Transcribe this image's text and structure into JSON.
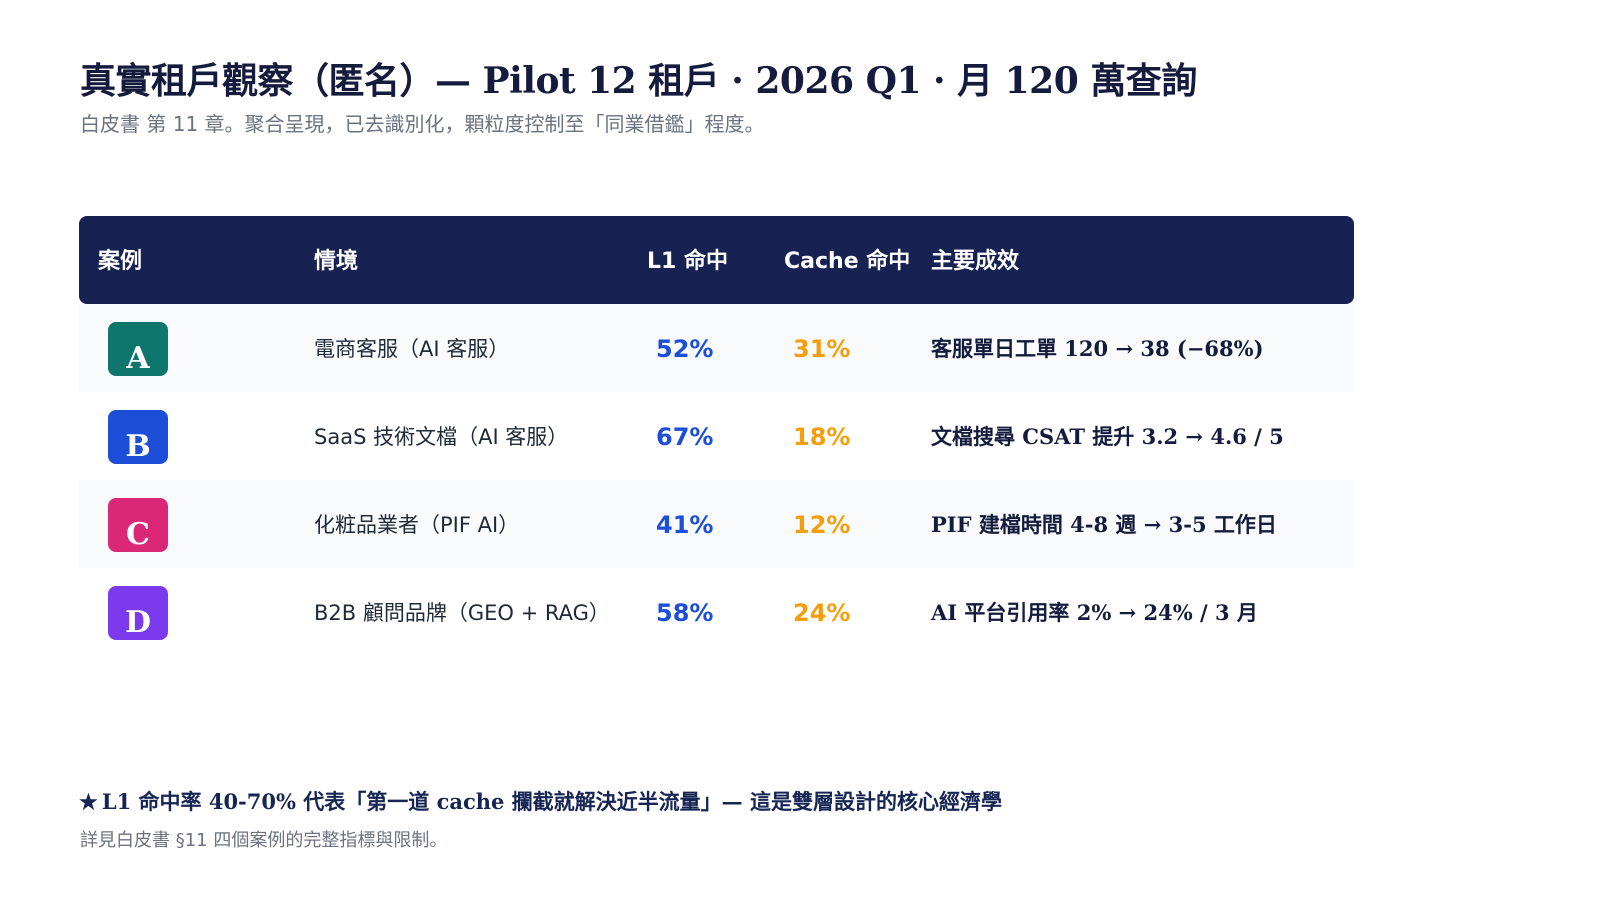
{
  "header": {
    "title": "真實租戶觀察（匿名）— Pilot 12 租戶 · 2026 Q1 · 月 120 萬查詢",
    "subtitle": "白皮書 第 11 章。聚合呈現，已去識別化，顆粒度控制至「同業借鑑」程度。"
  },
  "table": {
    "columns": [
      "案例",
      "情境",
      "L1 命中",
      "Cache 命中",
      "主要成效"
    ],
    "rows": [
      {
        "case": "A",
        "badge_color": "#0f766e",
        "scenario": "電商客服（AI 客服）",
        "l1_hit": "52%",
        "cache_hit": "31%",
        "result": "客服單日工單 120 → 38 (−68%)"
      },
      {
        "case": "B",
        "badge_color": "#1d4ed8",
        "scenario": "SaaS 技術文檔（AI 客服）",
        "l1_hit": "67%",
        "cache_hit": "18%",
        "result": "文檔搜尋 CSAT 提升 3.2 → 4.6 / 5"
      },
      {
        "case": "C",
        "badge_color": "#db2777",
        "scenario": "化粧品業者（PIF AI）",
        "l1_hit": "41%",
        "cache_hit": "12%",
        "result": "PIF 建檔時間 4-8 週 → 3-5 工作日"
      },
      {
        "case": "D",
        "badge_color": "#7c3aed",
        "scenario": "B2B 顧問品牌（GEO + RAG）",
        "l1_hit": "58%",
        "cache_hit": "24%",
        "result": "AI 平台引用率 2% → 24% / 3 月"
      }
    ]
  },
  "colors": {
    "header_bg": "#172252",
    "l1_accent": "#1d4ed8",
    "cache_accent": "#f59e0b"
  },
  "footer": {
    "star": "★",
    "note": "L1 命中率 40-70% 代表「第一道 cache 攔截就解決近半流量」— 這是雙層設計的核心經濟學",
    "footnote": "詳見白皮書 §11 四個案例的完整指標與限制。"
  }
}
